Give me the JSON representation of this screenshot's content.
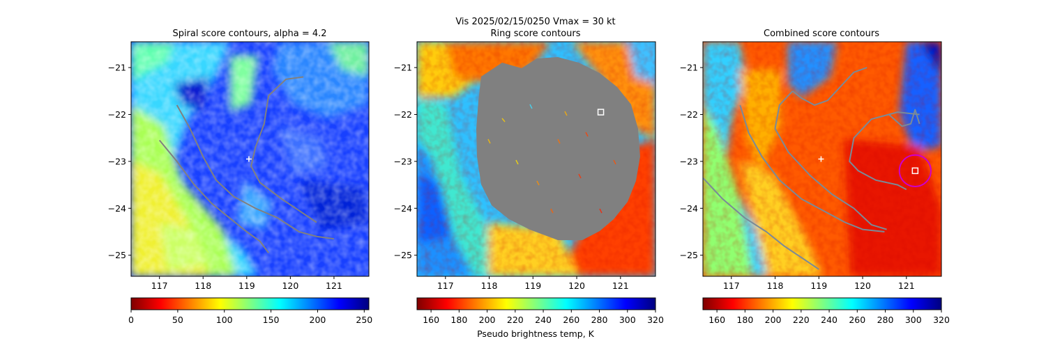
{
  "figure": {
    "suptitle_line1": "Vis  2025/02/15/0250    Vmax = 30 kt",
    "colorbar_label": "Pseudo brightness temp, K"
  },
  "chart_data": [
    {
      "type": "heatmap",
      "title": "Spiral score contours, alpha =  4.2",
      "xlim": [
        116.35,
        121.8
      ],
      "ylim": [
        -25.45,
        -20.45
      ],
      "xticks": [
        "117",
        "118",
        "119",
        "120",
        "121"
      ],
      "xtick_values": [
        117,
        118,
        119,
        120,
        121
      ],
      "yticks": [
        "−21",
        "−22",
        "−23",
        "−24",
        "−25"
      ],
      "ytick_values": [
        -21,
        -22,
        -23,
        -24,
        -25
      ],
      "colormap": "jet_r",
      "colorbar": {
        "range": [
          0,
          255
        ],
        "ticks": [
          "0",
          "50",
          "100",
          "150",
          "200",
          "250"
        ],
        "tick_values": [
          0,
          50,
          100,
          150,
          200,
          250
        ]
      },
      "center_marker": {
        "symbol": "plus",
        "lon": 119.05,
        "lat": -22.95,
        "color": "#ffffff"
      },
      "contour_color": "#808080",
      "contours": [
        [
          [
            117.0,
            -22.55
          ],
          [
            117.4,
            -23.0
          ],
          [
            117.8,
            -23.5
          ],
          [
            118.2,
            -23.9
          ],
          [
            118.6,
            -24.2
          ],
          [
            119.0,
            -24.5
          ],
          [
            119.3,
            -24.7
          ],
          [
            119.5,
            -24.95
          ]
        ],
        [
          [
            117.4,
            -21.8
          ],
          [
            117.7,
            -22.3
          ],
          [
            118.0,
            -22.9
          ],
          [
            118.3,
            -23.4
          ],
          [
            118.7,
            -23.75
          ],
          [
            119.2,
            -24.0
          ],
          [
            119.7,
            -24.2
          ],
          [
            120.2,
            -24.5
          ],
          [
            120.6,
            -24.6
          ],
          [
            121.0,
            -24.65
          ]
        ],
        [
          [
            120.3,
            -21.2
          ],
          [
            119.9,
            -21.25
          ],
          [
            119.5,
            -21.6
          ],
          [
            119.4,
            -22.2
          ],
          [
            119.2,
            -22.7
          ],
          [
            119.1,
            -23.1
          ],
          [
            119.3,
            -23.45
          ],
          [
            119.8,
            -23.8
          ],
          [
            120.2,
            -24.05
          ],
          [
            120.6,
            -24.3
          ]
        ]
      ]
    },
    {
      "type": "heatmap",
      "title": "Ring score contours",
      "xlim": [
        116.35,
        121.8
      ],
      "ylim": [
        -25.45,
        -20.45
      ],
      "xticks": [
        "117",
        "118",
        "119",
        "120",
        "121"
      ],
      "xtick_values": [
        117,
        118,
        119,
        120,
        121
      ],
      "yticks": [
        "−21",
        "−22",
        "−23",
        "−24",
        "−25"
      ],
      "ytick_values": [
        -21,
        -22,
        -23,
        -24,
        -25
      ],
      "colormap": "jet_r",
      "colorbar": {
        "range": [
          150,
          320
        ],
        "ticks": [
          "160",
          "180",
          "200",
          "220",
          "240",
          "260",
          "280",
          "300",
          "320"
        ],
        "tick_values": [
          160,
          180,
          200,
          220,
          240,
          260,
          280,
          300,
          320
        ]
      },
      "ring_mask_color": "#808080",
      "center_marker": {
        "symbol": "square",
        "lon": 120.55,
        "lat": -21.95,
        "color": "#ffffff"
      }
    },
    {
      "type": "heatmap",
      "title": "Combined score contours",
      "xlim": [
        116.35,
        121.8
      ],
      "ylim": [
        -25.45,
        -20.45
      ],
      "xticks": [
        "117",
        "118",
        "119",
        "120",
        "121"
      ],
      "xtick_values": [
        117,
        118,
        119,
        120,
        121
      ],
      "yticks": [
        "−21",
        "−22",
        "−23",
        "−24",
        "−25"
      ],
      "ytick_values": [
        -21,
        -22,
        -23,
        -24,
        -25
      ],
      "colormap": "jet_r",
      "colorbar": {
        "range": [
          150,
          320
        ],
        "ticks": [
          "160",
          "180",
          "200",
          "220",
          "240",
          "260",
          "280",
          "300",
          "320"
        ],
        "tick_values": [
          160,
          180,
          200,
          220,
          240,
          260,
          280,
          300,
          320
        ]
      },
      "center_marker": {
        "symbol": "plus",
        "lon": 119.05,
        "lat": -22.95,
        "color": "#ffffff"
      },
      "best_fit": {
        "symbol": "square",
        "lon": 121.2,
        "lat": -23.2,
        "color": "#ffffff",
        "ring_color": "#cc00cc",
        "ring_radius_deg": 0.36
      },
      "contour_color": "#7a8a98",
      "contours": [
        [
          [
            116.35,
            -23.35
          ],
          [
            116.8,
            -23.8
          ],
          [
            117.3,
            -24.2
          ],
          [
            117.8,
            -24.5
          ],
          [
            118.2,
            -24.8
          ],
          [
            118.6,
            -25.05
          ],
          [
            119.0,
            -25.3
          ]
        ],
        [
          [
            117.2,
            -21.8
          ],
          [
            117.4,
            -22.4
          ],
          [
            117.7,
            -22.9
          ],
          [
            118.1,
            -23.4
          ],
          [
            118.6,
            -23.8
          ],
          [
            119.2,
            -24.1
          ],
          [
            119.6,
            -24.3
          ],
          [
            120.0,
            -24.45
          ],
          [
            120.5,
            -24.5
          ]
        ],
        [
          [
            118.4,
            -21.5
          ],
          [
            118.6,
            -21.65
          ],
          [
            118.9,
            -21.8
          ],
          [
            119.2,
            -21.7
          ],
          [
            119.4,
            -21.5
          ],
          [
            119.6,
            -21.3
          ],
          [
            119.8,
            -21.1
          ],
          [
            120.1,
            -21.0
          ]
        ],
        [
          [
            118.4,
            -21.5
          ],
          [
            118.1,
            -21.8
          ],
          [
            118.0,
            -22.3
          ],
          [
            118.3,
            -22.8
          ],
          [
            118.8,
            -23.3
          ],
          [
            119.3,
            -23.7
          ],
          [
            119.8,
            -24.0
          ],
          [
            120.2,
            -24.35
          ],
          [
            120.55,
            -24.45
          ]
        ],
        [
          [
            121.3,
            -22.0
          ],
          [
            120.8,
            -21.95
          ],
          [
            120.2,
            -22.1
          ],
          [
            119.8,
            -22.5
          ],
          [
            119.7,
            -23.0
          ],
          [
            119.9,
            -23.2
          ],
          [
            120.3,
            -23.4
          ],
          [
            120.8,
            -23.5
          ],
          [
            121.0,
            -23.6
          ]
        ],
        [
          [
            120.6,
            -22.0
          ],
          [
            120.9,
            -22.25
          ],
          [
            121.1,
            -22.2
          ],
          [
            121.2,
            -21.9
          ],
          [
            121.3,
            -22.2
          ]
        ]
      ]
    }
  ]
}
